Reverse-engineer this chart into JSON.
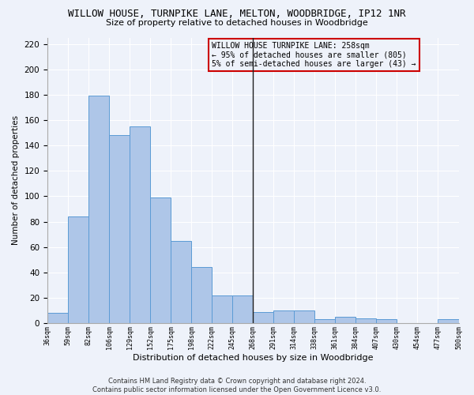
{
  "title": "WILLOW HOUSE, TURNPIKE LANE, MELTON, WOODBRIDGE, IP12 1NR",
  "subtitle": "Size of property relative to detached houses in Woodbridge",
  "xlabel": "Distribution of detached houses by size in Woodbridge",
  "ylabel": "Number of detached properties",
  "footer_line1": "Contains HM Land Registry data © Crown copyright and database right 2024.",
  "footer_line2": "Contains public sector information licensed under the Open Government Licence v3.0.",
  "annotation_line1": "WILLOW HOUSE TURNPIKE LANE: 258sqm",
  "annotation_line2": "← 95% of detached houses are smaller (805)",
  "annotation_line3": "5% of semi-detached houses are larger (43) →",
  "bar_values": [
    8,
    84,
    179,
    148,
    155,
    99,
    65,
    44,
    22,
    22,
    9,
    10,
    10,
    3,
    5,
    4,
    3,
    0,
    0,
    3
  ],
  "categories": [
    "36sqm",
    "59sqm",
    "82sqm",
    "106sqm",
    "129sqm",
    "152sqm",
    "175sqm",
    "198sqm",
    "222sqm",
    "245sqm",
    "268sqm",
    "291sqm",
    "314sqm",
    "338sqm",
    "361sqm",
    "384sqm",
    "407sqm",
    "430sqm",
    "454sqm",
    "477sqm",
    "500sqm"
  ],
  "bar_color": "#aec6e8",
  "bar_edge_color": "#5b9bd5",
  "vline_x": 9.5,
  "vline_color": "#1f1f1f",
  "ylim": [
    0,
    225
  ],
  "yticks": [
    0,
    20,
    40,
    60,
    80,
    100,
    120,
    140,
    160,
    180,
    200,
    220
  ],
  "annotation_box_color": "#cc0000",
  "bg_color": "#eef2fa",
  "grid_color": "#ffffff",
  "title_fontsize": 9,
  "subtitle_fontsize": 8
}
